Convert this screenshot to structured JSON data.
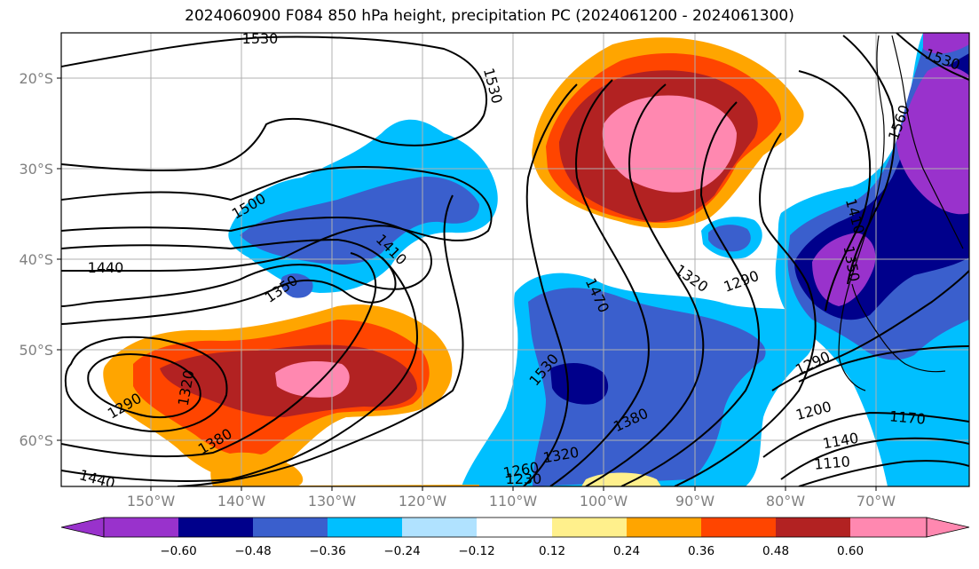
{
  "title": "2024060900 F084 850 hPa height, precipitation PC (2024061200 - 2024061300)",
  "map": {
    "lat_ticks": [
      "20°S",
      "30°S",
      "40°S",
      "50°S",
      "60°S"
    ],
    "lon_ticks": [
      "150°W",
      "140°W",
      "130°W",
      "120°W",
      "110°W",
      "100°W",
      "90°W",
      "80°W",
      "70°W"
    ],
    "gridlines": true,
    "coastlines": true
  },
  "contour_labels": [
    "1530",
    "1530",
    "1530",
    "1500",
    "1440",
    "1410",
    "1350",
    "1320",
    "1290",
    "1380",
    "1440",
    "1470",
    "1530",
    "1320",
    "1290",
    "1290",
    "1380",
    "1320",
    "1260",
    "1230",
    "1200",
    "1170",
    "1140",
    "1110",
    "1410",
    "1350",
    "1560"
  ],
  "colorbar": {
    "tick_labels": [
      "−0.60",
      "−0.48",
      "−0.36",
      "−0.24",
      "−0.12",
      "0.12",
      "0.24",
      "0.36",
      "0.48",
      "0.60"
    ],
    "colors": [
      "#9932cc",
      "#00008b",
      "#3a5fcd",
      "#00bfff",
      "#b0e2ff",
      "#ffffff",
      "#fff08c",
      "#ffa500",
      "#ff4500",
      "#b22222",
      "#ff88b0"
    ],
    "extend": "both"
  }
}
